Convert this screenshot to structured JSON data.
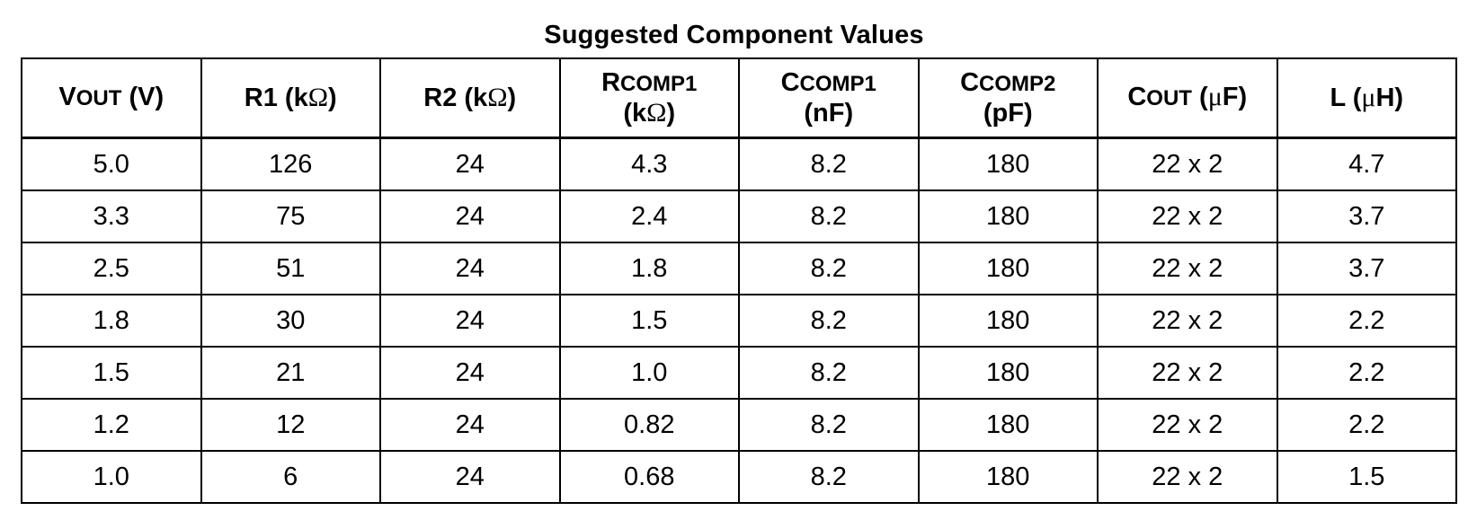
{
  "title": "Suggested Component Values",
  "columns": [
    {
      "main": "V",
      "sub": "OUT",
      "open": " (",
      "symbol": "",
      "close": "V)"
    },
    {
      "main": "R1",
      "sub": "",
      "open": " (k",
      "symbol": "Ω",
      "close": ")"
    },
    {
      "main": "R2",
      "sub": "",
      "open": " (k",
      "symbol": "Ω",
      "close": ")"
    },
    {
      "main": "R",
      "sub": "COMP1",
      "open": "(k",
      "symbol": "Ω",
      "close": ")"
    },
    {
      "main": "C",
      "sub": "COMP1",
      "open": "(nF)",
      "symbol": "",
      "close": ""
    },
    {
      "main": "C",
      "sub": "COMP2",
      "open": "(pF)",
      "symbol": "",
      "close": ""
    },
    {
      "main": "C",
      "sub": "OUT",
      "open": " (",
      "symbol": "μ",
      "close": "F)"
    },
    {
      "main": "L",
      "sub": "",
      "open": " (",
      "symbol": "μ",
      "close": "H)"
    }
  ],
  "rows": [
    [
      "5.0",
      "126",
      "24",
      "4.3",
      "8.2",
      "180",
      "22 x 2",
      "4.7"
    ],
    [
      "3.3",
      "75",
      "24",
      "2.4",
      "8.2",
      "180",
      "22 x 2",
      "3.7"
    ],
    [
      "2.5",
      "51",
      "24",
      "1.8",
      "8.2",
      "180",
      "22 x 2",
      "3.7"
    ],
    [
      "1.8",
      "30",
      "24",
      "1.5",
      "8.2",
      "180",
      "22 x 2",
      "2.2"
    ],
    [
      "1.5",
      "21",
      "24",
      "1.0",
      "8.2",
      "180",
      "22 x 2",
      "2.2"
    ],
    [
      "1.2",
      "12",
      "24",
      "0.82",
      "8.2",
      "180",
      "22 x 2",
      "2.2"
    ],
    [
      "1.0",
      "6",
      "24",
      "0.68",
      "8.2",
      "180",
      "22 x 2",
      "1.5"
    ]
  ]
}
